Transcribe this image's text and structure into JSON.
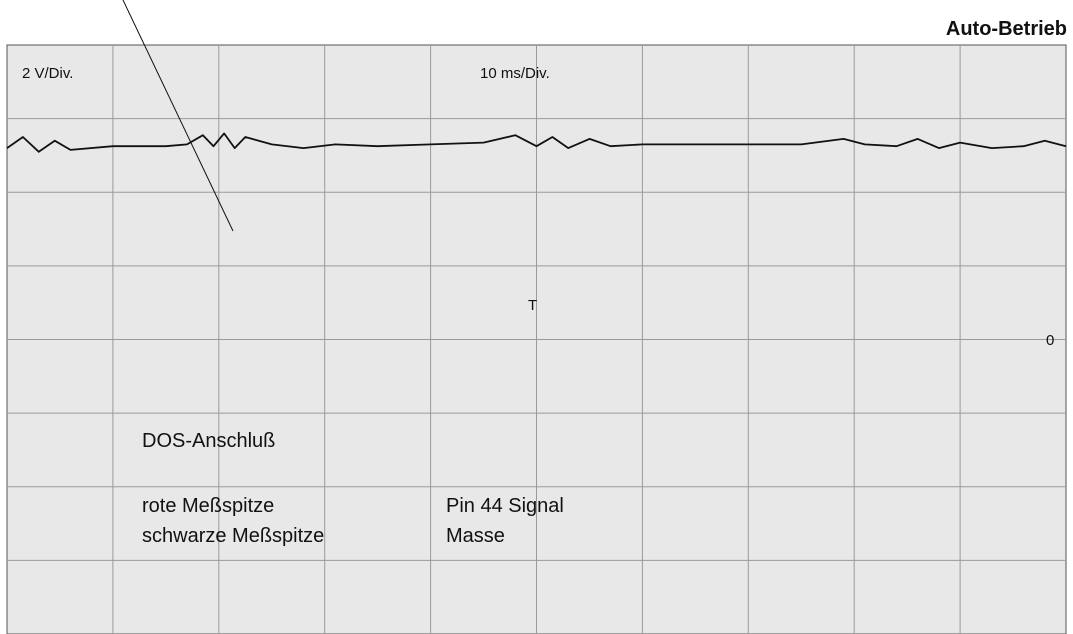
{
  "header": {
    "mode": "Auto-Betrieb"
  },
  "scope": {
    "volts_per_div": "2 V/Div.",
    "time_per_div": "10 ms/Div.",
    "trigger_marker": "T",
    "zero_marker": "0"
  },
  "info": {
    "connection": "DOS-Anschluß",
    "probes": [
      {
        "probe": "rote Meßspitze",
        "target": "Pin 44 Signal"
      },
      {
        "probe": "schwarze Meßspitze",
        "target": "Masse"
      }
    ]
  },
  "colors": {
    "background": "#e8e8e8",
    "grid": "#9a9a9a",
    "trace": "#111111"
  },
  "chart_data": {
    "type": "line",
    "x_unit": "ms",
    "y_unit": "V",
    "xlim": [
      0,
      100
    ],
    "ylim": [
      -8,
      8
    ],
    "x": [
      0,
      1.5,
      3,
      4.5,
      6,
      10,
      15,
      17,
      18.5,
      19.5,
      20.5,
      21.5,
      22.5,
      25,
      28,
      31,
      35,
      40,
      45,
      48,
      50,
      51.5,
      53,
      55,
      57,
      60,
      65,
      70,
      75,
      79,
      81,
      84,
      86,
      88,
      90,
      93,
      96,
      98,
      100
    ],
    "y": [
      5.2,
      5.5,
      5.1,
      5.4,
      5.15,
      5.25,
      5.25,
      5.3,
      5.55,
      5.25,
      5.6,
      5.2,
      5.5,
      5.3,
      5.2,
      5.3,
      5.25,
      5.3,
      5.35,
      5.55,
      5.25,
      5.5,
      5.2,
      5.45,
      5.25,
      5.3,
      5.3,
      5.3,
      5.3,
      5.45,
      5.3,
      5.25,
      5.45,
      5.2,
      5.35,
      5.2,
      5.25,
      5.4,
      5.25
    ]
  }
}
